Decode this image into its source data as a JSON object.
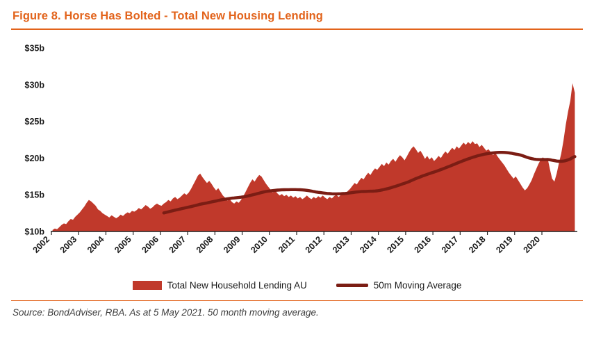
{
  "title": "Figure 8. Horse Has Bolted - Total New Housing Lending",
  "source": "Source: BondAdviser, RBA. As at 5 May 2021. 50 month moving average.",
  "colors": {
    "accent": "#E2631B",
    "area": "#C0392B",
    "ma_line": "#7B1D14",
    "axis": "#222222"
  },
  "legend": [
    {
      "label": "Total New Household Lending AU",
      "swatch": "area"
    },
    {
      "label": "50m Moving Average",
      "swatch": "line"
    }
  ],
  "chart_data": {
    "type": "area",
    "title": "Figure 8. Horse Has Bolted - Total New Housing Lending",
    "xlabel": "",
    "ylabel": "",
    "xlim": [
      2002,
      2021.3
    ],
    "ylim": [
      10,
      35
    ],
    "grid": false,
    "legend_position": "bottom",
    "yticks": [
      {
        "value": 10,
        "label": "$10b"
      },
      {
        "value": 15,
        "label": "$15b"
      },
      {
        "value": 20,
        "label": "$20b"
      },
      {
        "value": 25,
        "label": "$25b"
      },
      {
        "value": 30,
        "label": "$30b"
      },
      {
        "value": 35,
        "label": "$35b"
      }
    ],
    "xticks": [
      {
        "value": 2002,
        "label": "2002"
      },
      {
        "value": 2003,
        "label": "2003"
      },
      {
        "value": 2004,
        "label": "2004"
      },
      {
        "value": 2005,
        "label": "2005"
      },
      {
        "value": 2006,
        "label": "2006"
      },
      {
        "value": 2007,
        "label": "2007"
      },
      {
        "value": 2008,
        "label": "2008"
      },
      {
        "value": 2009,
        "label": "2009"
      },
      {
        "value": 2010,
        "label": "2010"
      },
      {
        "value": 2011,
        "label": "2011"
      },
      {
        "value": 2012,
        "label": "2012"
      },
      {
        "value": 2013,
        "label": "2013"
      },
      {
        "value": 2014,
        "label": "2014"
      },
      {
        "value": 2015,
        "label": "2015"
      },
      {
        "value": 2016,
        "label": "2016"
      },
      {
        "value": 2017,
        "label": "2017"
      },
      {
        "value": 2018,
        "label": "2018"
      },
      {
        "value": 2019,
        "label": "2019"
      },
      {
        "value": 2020,
        "label": "2020"
      }
    ],
    "series": [
      {
        "name": "Total New Household Lending AU",
        "unit": "$b",
        "x_start": 2002,
        "interval": "monthly",
        "values": [
          10.2,
          10.4,
          10.3,
          10.6,
          10.9,
          11.1,
          11.0,
          11.4,
          11.7,
          11.6,
          12.0,
          12.3,
          12.6,
          13.0,
          13.4,
          13.9,
          14.3,
          14.1,
          13.8,
          13.5,
          13.0,
          12.8,
          12.5,
          12.3,
          12.1,
          11.9,
          12.2,
          12.0,
          11.8,
          12.0,
          12.3,
          12.1,
          12.4,
          12.6,
          12.5,
          12.8,
          12.7,
          12.9,
          13.2,
          13.0,
          13.3,
          13.6,
          13.4,
          13.1,
          13.3,
          13.6,
          13.8,
          13.6,
          13.5,
          13.8,
          14.0,
          14.3,
          14.1,
          14.5,
          14.7,
          14.4,
          14.6,
          14.9,
          15.2,
          15.0,
          15.3,
          15.8,
          16.4,
          17.0,
          17.6,
          17.9,
          17.4,
          17.0,
          16.6,
          16.9,
          16.5,
          16.0,
          15.6,
          15.9,
          15.4,
          14.9,
          14.6,
          14.2,
          14.4,
          14.0,
          13.8,
          14.1,
          13.9,
          14.3,
          14.8,
          15.4,
          16.0,
          16.6,
          17.1,
          16.8,
          17.3,
          17.7,
          17.5,
          17.0,
          16.5,
          16.1,
          15.7,
          15.3,
          15.6,
          15.2,
          14.9,
          15.1,
          14.8,
          15.0,
          14.7,
          14.9,
          14.6,
          14.8,
          14.5,
          14.7,
          14.4,
          14.6,
          14.9,
          14.6,
          14.4,
          14.7,
          14.5,
          14.8,
          14.6,
          14.9,
          14.6,
          14.4,
          14.7,
          14.5,
          14.8,
          15.0,
          14.7,
          15.0,
          15.3,
          15.1,
          15.5,
          15.8,
          16.2,
          16.6,
          16.4,
          16.9,
          17.3,
          17.1,
          17.6,
          18.0,
          17.7,
          18.2,
          18.6,
          18.4,
          18.8,
          19.2,
          18.9,
          19.4,
          19.1,
          19.6,
          19.9,
          19.5,
          20.0,
          20.4,
          20.1,
          19.7,
          20.2,
          20.8,
          21.3,
          21.6,
          21.2,
          20.7,
          21.0,
          20.5,
          19.9,
          20.3,
          19.8,
          20.1,
          19.6,
          19.9,
          20.3,
          20.0,
          20.5,
          20.9,
          20.6,
          21.0,
          21.4,
          21.1,
          21.6,
          21.3,
          21.7,
          22.1,
          21.8,
          22.2,
          21.9,
          22.3,
          21.9,
          22.0,
          21.5,
          21.8,
          21.4,
          21.0,
          21.2,
          20.8,
          20.4,
          20.7,
          20.2,
          19.8,
          19.4,
          19.0,
          18.5,
          18.0,
          17.6,
          17.2,
          17.5,
          17.0,
          16.5,
          16.0,
          15.6,
          15.9,
          16.4,
          17.0,
          17.8,
          18.5,
          19.2,
          19.8,
          20.1,
          19.7,
          20.0,
          18.5,
          17.2,
          16.8,
          17.9,
          19.3,
          20.6,
          22.4,
          24.5,
          26.3,
          27.8,
          30.2,
          28.9
        ]
      },
      {
        "name": "50m Moving Average",
        "derived_from": "Total New Household Lending AU",
        "window_months": 50
      }
    ]
  }
}
